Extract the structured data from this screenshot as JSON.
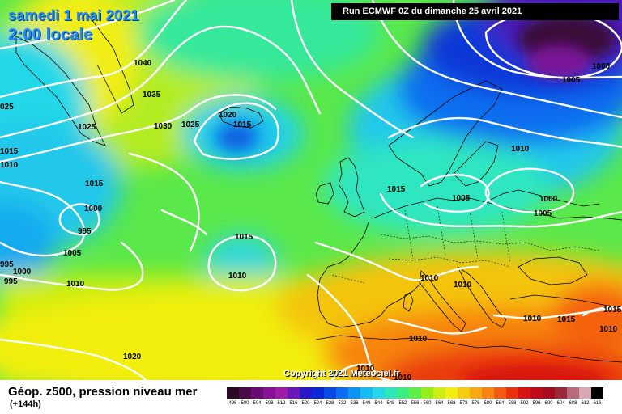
{
  "header": {
    "date": "samedi 1 mai 2021",
    "local_time": "2:00 locale",
    "run": "Run ECMWF 0Z du dimanche 25 avril 2021"
  },
  "copyright": "Copyright 2021 Meteociel.fr",
  "legend": {
    "title": "Géop. z500, pression niveau mer",
    "subtitle": "(+144h)",
    "scale": [
      {
        "label": "496",
        "color": "#2a0a22"
      },
      {
        "label": "500",
        "color": "#4a0a4a"
      },
      {
        "label": "504",
        "color": "#6a0a72"
      },
      {
        "label": "508",
        "color": "#8a1296"
      },
      {
        "label": "512",
        "color": "#a01ca8"
      },
      {
        "label": "516",
        "color": "#6a18b8"
      },
      {
        "label": "520",
        "color": "#2a18c8"
      },
      {
        "label": "524",
        "color": "#0a28d8"
      },
      {
        "label": "528",
        "color": "#0a48e8"
      },
      {
        "label": "532",
        "color": "#0a6ef0"
      },
      {
        "label": "536",
        "color": "#0a96f0"
      },
      {
        "label": "540",
        "color": "#16bcf0"
      },
      {
        "label": "544",
        "color": "#22d8e8"
      },
      {
        "label": "548",
        "color": "#2ee6b8"
      },
      {
        "label": "552",
        "color": "#3aee84"
      },
      {
        "label": "556",
        "color": "#5af048"
      },
      {
        "label": "560",
        "color": "#96ee18"
      },
      {
        "label": "564",
        "color": "#ccee10"
      },
      {
        "label": "568",
        "color": "#f2ee10"
      },
      {
        "label": "572",
        "color": "#f6cc10"
      },
      {
        "label": "576",
        "color": "#f8a810"
      },
      {
        "label": "580",
        "color": "#f88410"
      },
      {
        "label": "584",
        "color": "#f45a10"
      },
      {
        "label": "588",
        "color": "#ea3210"
      },
      {
        "label": "592",
        "color": "#d81410"
      },
      {
        "label": "596",
        "color": "#c00a16"
      },
      {
        "label": "600",
        "color": "#a80a1e"
      },
      {
        "label": "604",
        "color": "#9a2a3a"
      },
      {
        "label": "608",
        "color": "#b86a7a"
      },
      {
        "label": "612",
        "color": "#d8a8b4"
      },
      {
        "label": "616",
        "color": "#000000"
      }
    ]
  },
  "isobar_labels": [
    "1040",
    "1035",
    "1030",
    "1025",
    "1025",
    "1020",
    "1015",
    "025",
    "1015",
    "1010",
    "1015",
    "1000",
    "995",
    "1005",
    "995",
    "1000",
    "995",
    "1010",
    "1015",
    "1010",
    "1020",
    "1015",
    "1010",
    "1005",
    "1000",
    "1005",
    "1010",
    "1005",
    "1000",
    "1010",
    "1010",
    "1010",
    "1015",
    "1015",
    "1010",
    "1010",
    "1010"
  ]
}
